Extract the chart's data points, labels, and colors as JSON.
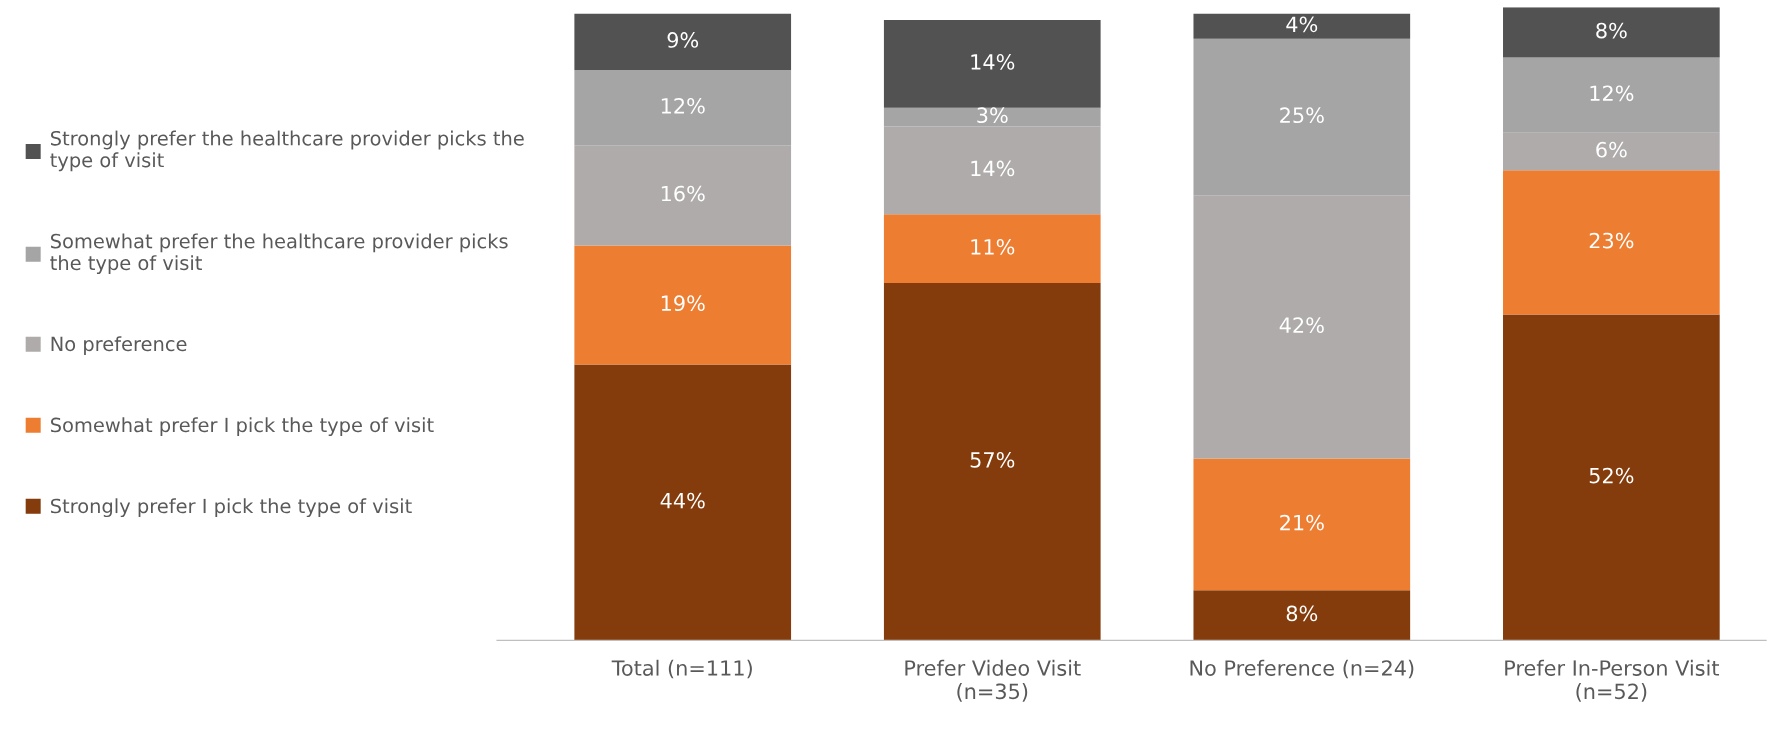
{
  "chart_data": {
    "type": "bar",
    "stacked": true,
    "legend": "left",
    "grid": false,
    "categories": [
      "Total (n=111)",
      "Prefer Video Visit\n(n=35)",
      "No Preference (n=24)",
      "Prefer In-Person Visit\n(n=52)"
    ],
    "series": [
      {
        "name": "Strongly prefer I pick the type of visit",
        "color": "#843c0c",
        "values": [
          44,
          57,
          8,
          52
        ],
        "value_labels": [
          "44%",
          "57%",
          "8%",
          "52%"
        ]
      },
      {
        "name": "Somewhat prefer I pick the type of visit",
        "color": "#ed7d31",
        "values": [
          19,
          11,
          21,
          23
        ],
        "value_labels": [
          "19%",
          "11%",
          "21%",
          "23%"
        ]
      },
      {
        "name": "No preference",
        "color": "#afabab",
        "values": [
          16,
          14,
          42,
          6
        ],
        "value_labels": [
          "16%",
          "14%",
          "42%",
          "6%"
        ]
      },
      {
        "name": "Somewhat prefer the healthcare provider picks\nthe type of visit",
        "color": "#a5a5a5",
        "values": [
          12,
          3,
          25,
          12
        ],
        "value_labels": [
          "12%",
          "3%",
          "25%",
          "12%"
        ]
      },
      {
        "name": "Strongly prefer the healthcare provider picks the\ntype of visit",
        "color": "#525252",
        "values": [
          9,
          14,
          4,
          8
        ],
        "value_labels": [
          "9%",
          "14%",
          "4%",
          "8%"
        ]
      }
    ]
  }
}
